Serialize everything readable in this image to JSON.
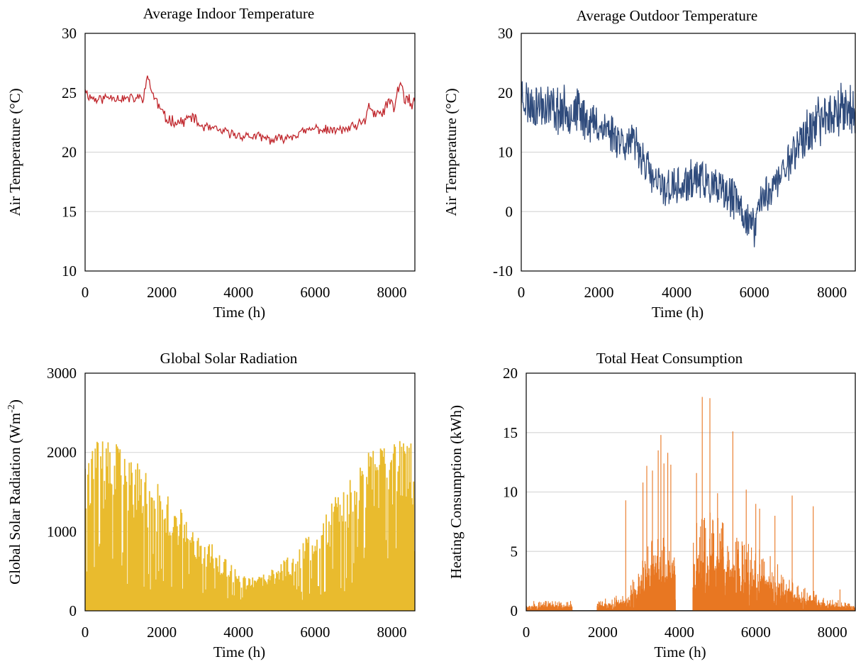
{
  "chart_data": [
    {
      "id": "indoor",
      "type": "line",
      "title": "Average Indoor Temperature",
      "xlabel": "Time (h)",
      "ylabel": "Air Temperature (°C)",
      "ylabel_sup": "",
      "ylabel_tail": "",
      "xlim": [
        0,
        8600
      ],
      "ylim": [
        10,
        30
      ],
      "xticks": [
        "0",
        "2000",
        "4000",
        "6000",
        "8000"
      ],
      "yticks": [
        "10",
        "15",
        "20",
        "25",
        "30"
      ],
      "color": "#C0272D",
      "grid": true,
      "kind": "line",
      "step": 25,
      "knots_x": [
        0,
        60,
        300,
        700,
        1000,
        1300,
        1500,
        1650,
        1750,
        1900,
        2100,
        2500,
        2800,
        3000,
        3500,
        4000,
        4500,
        4900,
        5200,
        5600,
        6000,
        6400,
        6800,
        7100,
        7300,
        7400,
        7500,
        7700,
        7900,
        8050,
        8200,
        8350,
        8500,
        8600
      ],
      "knots_y": [
        25.5,
        24.8,
        24.4,
        24.7,
        24.5,
        24.5,
        24.6,
        26.3,
        25.0,
        24.0,
        22.8,
        22.5,
        23.0,
        22.2,
        21.8,
        21.4,
        21.3,
        21.0,
        21.2,
        21.6,
        22.0,
        21.8,
        21.9,
        22.2,
        22.5,
        24.2,
        23.3,
        23.0,
        24.2,
        23.7,
        25.8,
        24.5,
        24.0,
        24.0
      ],
      "noise": [
        0.35,
        0.35,
        0.4,
        0.4,
        0.4,
        0.4,
        0.4,
        0.45,
        0.45,
        0.45,
        0.45,
        0.4,
        0.4,
        0.4,
        0.35,
        0.35,
        0.35,
        0.35,
        0.35,
        0.35,
        0.35,
        0.35,
        0.35,
        0.4,
        0.45,
        0.5,
        0.5,
        0.5,
        0.6,
        0.6,
        0.6,
        0.6,
        0.6,
        0.6
      ],
      "seed": 11
    },
    {
      "id": "outdoor",
      "type": "line",
      "title": "Average Outdoor Temperature",
      "xlabel": "Time (h)",
      "ylabel": "Air Temperature (°C)",
      "ylabel_sup": "",
      "ylabel_tail": "",
      "xlim": [
        0,
        8600
      ],
      "ylim": [
        -10,
        30
      ],
      "xticks": [
        "0",
        "2000",
        "4000",
        "6000",
        "8000"
      ],
      "yticks": [
        "-10",
        "0",
        "10",
        "20",
        "30"
      ],
      "color": "#2F4B7C",
      "grid": true,
      "kind": "line",
      "step": 12,
      "knots_x": [
        0,
        200,
        600,
        1000,
        1400,
        1800,
        2200,
        2600,
        3000,
        3200,
        3400,
        3700,
        3900,
        4200,
        4500,
        4900,
        5200,
        5500,
        5800,
        6000,
        6100,
        6300,
        6600,
        6900,
        7200,
        7500,
        7800,
        8100,
        8300,
        8600
      ],
      "knots_y": [
        20,
        18,
        18,
        17,
        17,
        15,
        14,
        12,
        11,
        8,
        5,
        4,
        4,
        4,
        6,
        4,
        3,
        2,
        -1,
        -3,
        1,
        3,
        5,
        9,
        12,
        14,
        16,
        17,
        18,
        16
      ],
      "noise": [
        3.5,
        3.5,
        3.5,
        3.5,
        3.5,
        3.2,
        3.0,
        3.0,
        3.0,
        3.0,
        3.0,
        3.0,
        3.0,
        3.0,
        3.0,
        3.0,
        3.0,
        3.0,
        3.0,
        3.0,
        3.0,
        3.0,
        3.0,
        3.2,
        3.5,
        3.5,
        3.8,
        3.8,
        3.8,
        3.8
      ],
      "seed": 23
    },
    {
      "id": "solar",
      "type": "area",
      "title": "Global Solar Radiation",
      "xlabel": "Time (h)",
      "ylabel": "Global Solar Radiation (Wm",
      "ylabel_sup": "-2",
      "ylabel_tail": ")",
      "xlim": [
        0,
        8600
      ],
      "ylim": [
        0,
        3000
      ],
      "xticks": [
        "0",
        "2000",
        "4000",
        "6000",
        "8000"
      ],
      "yticks": [
        "0",
        "1000",
        "2000",
        "3000"
      ],
      "color": "#E9BB2E",
      "grid": true,
      "kind": "bars",
      "step": 24,
      "knots_x": [
        0,
        400,
        800,
        1200,
        1600,
        2000,
        2400,
        2800,
        3200,
        3600,
        4000,
        4400,
        4800,
        5200,
        5600,
        6000,
        6400,
        6800,
        7200,
        7600,
        8000,
        8300,
        8600
      ],
      "knots_y": [
        2100,
        2150,
        2150,
        1950,
        1750,
        1550,
        1350,
        1100,
        900,
        700,
        480,
        420,
        500,
        650,
        850,
        1100,
        1350,
        1650,
        1900,
        2100,
        2200,
        2200,
        2200
      ],
      "seed": 37
    },
    {
      "id": "heat",
      "type": "area",
      "title": "Total Heat Consumption",
      "xlabel": "Time (h)",
      "ylabel": "Heating Consumption (kWh)",
      "ylabel_sup": "",
      "ylabel_tail": "",
      "xlim": [
        0,
        8600
      ],
      "ylim": [
        0,
        20
      ],
      "xticks": [
        "0",
        "2000",
        "4000",
        "6000",
        "8000"
      ],
      "yticks": [
        "0",
        "5",
        "10",
        "15",
        "20"
      ],
      "color": "#E87722",
      "grid": true,
      "kind": "spikes",
      "step": 6,
      "knots_x": [
        0,
        1200,
        1201,
        1850,
        1851,
        2600,
        3100,
        3300,
        3900,
        3901,
        4350,
        4351,
        4700,
        5200,
        5700,
        6200,
        6700,
        7000,
        7500,
        8000,
        8600
      ],
      "knots_y": [
        0.5,
        0.5,
        0,
        0,
        0.5,
        0.9,
        3.0,
        4.0,
        4.5,
        0,
        0,
        4.5,
        5.0,
        4.5,
        3.5,
        3.0,
        2.2,
        1.5,
        1.0,
        0.6,
        0.4
      ],
      "peaks_x": [
        2600,
        3050,
        3150,
        3300,
        3450,
        3520,
        3600,
        3700,
        3780,
        4450,
        4600,
        4800,
        5000,
        5400,
        5750,
        6000,
        6100,
        6500,
        6950,
        7500,
        8200
      ],
      "peaks_y": [
        9.3,
        10.8,
        12.2,
        11.8,
        13.5,
        14.8,
        12.4,
        13.3,
        12.3,
        11.6,
        18.0,
        17.9,
        9.9,
        15.1,
        10.2,
        9.0,
        8.6,
        8.0,
        9.7,
        8.8,
        1.8
      ],
      "seed": 53
    }
  ]
}
